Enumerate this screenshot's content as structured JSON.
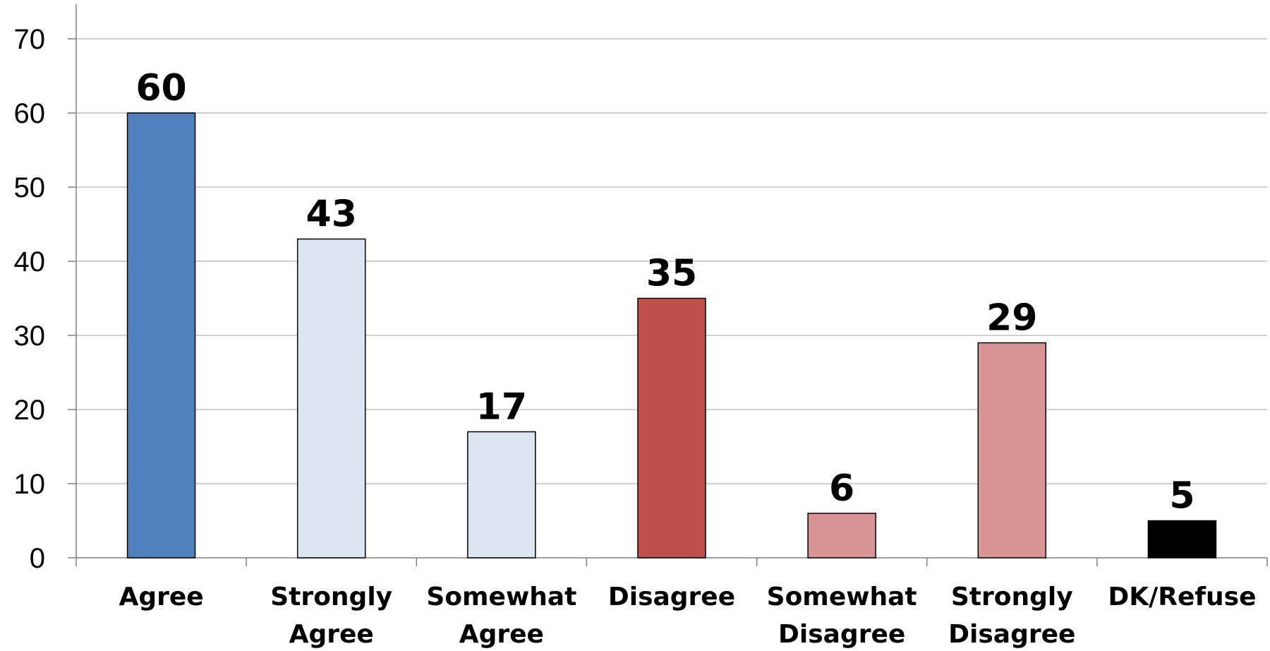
{
  "chart_data": {
    "type": "bar",
    "categories": [
      [
        "Agree"
      ],
      [
        "Strongly",
        "Agree"
      ],
      [
        "Somewhat",
        "Agree"
      ],
      [
        "Disagree"
      ],
      [
        "Somewhat",
        "Disagree"
      ],
      [
        "Strongly",
        "Disagree"
      ],
      [
        "DK/Refuse"
      ]
    ],
    "values": [
      60,
      43,
      17,
      35,
      6,
      29,
      5
    ],
    "data_labels": [
      "60",
      "43",
      "17",
      "35",
      "6",
      "29",
      "5"
    ],
    "bar_colors": [
      "#4f81bd",
      "#dce6f2",
      "#dce6f2",
      "#c0504d",
      "#d99594",
      "#d99594",
      "#000000"
    ],
    "ylim": [
      0,
      70
    ],
    "yticks": [
      0,
      10,
      20,
      30,
      40,
      50,
      60,
      70
    ],
    "grid": true,
    "gridline_color": "#bfbfbf",
    "title": "",
    "xlabel": "",
    "ylabel": ""
  }
}
